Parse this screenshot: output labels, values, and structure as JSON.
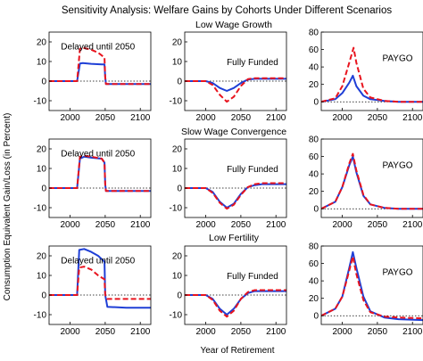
{
  "figure": {
    "title": "Sensitivity Analysis: Welfare Gains by Cohorts Under Different Scenarios",
    "ylabel": "Consumption Equivalent Gain/Loss (in Percent)",
    "xlabel": "Year of Retirement"
  },
  "rows": [
    {
      "title": "Low Wage Growth"
    },
    {
      "title": "Slow Wage Convergence"
    },
    {
      "title": "Low Fertility"
    }
  ],
  "colors": {
    "solid": "#1f3fd6",
    "dashed": "#e8141e",
    "axis": "#000000"
  },
  "chart_data": [
    {
      "type": "line",
      "row": 0,
      "col": 0,
      "annotation": "Delayed until 2050",
      "xlim": [
        1970,
        2115
      ],
      "ylim": [
        -15,
        25
      ],
      "xticks": [
        2000,
        2050,
        2100
      ],
      "yticks": [
        -10,
        0,
        10,
        20
      ],
      "zero_line": true,
      "series": [
        {
          "style": "solid",
          "x": [
            1970,
            2010,
            2014,
            2018,
            2030,
            2045,
            2049,
            2050,
            2051,
            2115
          ],
          "y": [
            0,
            0,
            9,
            9.2,
            8.8,
            8.5,
            8.5,
            2,
            -1.5,
            -1.5
          ]
        },
        {
          "style": "dashed",
          "x": [
            1970,
            2010,
            2014,
            2018,
            2030,
            2040,
            2049,
            2050,
            2051,
            2115
          ],
          "y": [
            0,
            0,
            16.5,
            17,
            16,
            14.5,
            12,
            2,
            -1.5,
            -1.5
          ]
        }
      ]
    },
    {
      "type": "line",
      "row": 0,
      "col": 1,
      "annotation": "Fully Funded",
      "xlim": [
        1970,
        2115
      ],
      "ylim": [
        -15,
        25
      ],
      "xticks": [
        2000,
        2050,
        2100
      ],
      "yticks": [
        -10,
        0,
        10,
        20
      ],
      "zero_line": true,
      "series": [
        {
          "style": "solid",
          "x": [
            1970,
            2000,
            2010,
            2020,
            2030,
            2040,
            2050,
            2060,
            2070,
            2080,
            2100,
            2115
          ],
          "y": [
            0,
            0,
            -1,
            -3.5,
            -5,
            -3.5,
            -1,
            0.8,
            1.2,
            1.2,
            1.2,
            1.2
          ]
        },
        {
          "style": "dashed",
          "x": [
            1970,
            2000,
            2010,
            2020,
            2030,
            2040,
            2050,
            2060,
            2070,
            2080,
            2100,
            2115
          ],
          "y": [
            0,
            0,
            -2,
            -7,
            -10.5,
            -8,
            -2.5,
            1,
            1.5,
            1.5,
            1.5,
            1.5
          ]
        }
      ]
    },
    {
      "type": "line",
      "row": 0,
      "col": 2,
      "annotation": "PAYGO",
      "xlim": [
        1970,
        2115
      ],
      "ylim": [
        -10,
        80
      ],
      "xticks": [
        2000,
        2050,
        2100
      ],
      "yticks": [
        0,
        20,
        40,
        60,
        80
      ],
      "zero_line": true,
      "series": [
        {
          "style": "solid",
          "x": [
            1970,
            1990,
            2000,
            2010,
            2015,
            2020,
            2030,
            2040,
            2060,
            2080,
            2115
          ],
          "y": [
            0,
            3,
            10,
            22,
            30,
            18,
            7,
            3,
            1,
            0,
            0
          ]
        },
        {
          "style": "dashed",
          "x": [
            1970,
            1990,
            2000,
            2010,
            2016,
            2020,
            2030,
            2040,
            2060,
            2080,
            2115
          ],
          "y": [
            0,
            4,
            18,
            45,
            62,
            45,
            15,
            5,
            1,
            0,
            0
          ]
        }
      ]
    },
    {
      "type": "line",
      "row": 1,
      "col": 0,
      "annotation": "Delayed until 2050",
      "xlim": [
        1970,
        2115
      ],
      "ylim": [
        -15,
        25
      ],
      "xticks": [
        2000,
        2050,
        2100
      ],
      "yticks": [
        -10,
        0,
        10,
        20
      ],
      "zero_line": true,
      "series": [
        {
          "style": "solid",
          "x": [
            1970,
            2010,
            2014,
            2020,
            2030,
            2045,
            2049,
            2050,
            2051,
            2115
          ],
          "y": [
            0,
            0,
            15,
            16,
            15.5,
            15,
            13,
            2,
            -1.5,
            -1.5
          ]
        },
        {
          "style": "dashed",
          "x": [
            1970,
            2010,
            2014,
            2020,
            2030,
            2045,
            2049,
            2050,
            2051,
            2115
          ],
          "y": [
            0,
            0,
            16,
            16.5,
            16,
            15,
            13,
            2,
            -1.5,
            -1.5
          ]
        }
      ]
    },
    {
      "type": "line",
      "row": 1,
      "col": 1,
      "annotation": "Fully Funded",
      "xlim": [
        1970,
        2115
      ],
      "ylim": [
        -15,
        25
      ],
      "xticks": [
        2000,
        2050,
        2100
      ],
      "yticks": [
        -10,
        0,
        10,
        20
      ],
      "zero_line": true,
      "series": [
        {
          "style": "solid",
          "x": [
            1970,
            2000,
            2010,
            2020,
            2030,
            2040,
            2050,
            2060,
            2070,
            2080,
            2100,
            2115
          ],
          "y": [
            0,
            0,
            -2,
            -7,
            -10,
            -8,
            -3,
            0.5,
            1.5,
            2,
            2,
            2
          ]
        },
        {
          "style": "dashed",
          "x": [
            1970,
            2000,
            2010,
            2020,
            2030,
            2040,
            2050,
            2060,
            2070,
            2080,
            2100,
            2115
          ],
          "y": [
            0,
            0,
            -2.5,
            -7.5,
            -10.5,
            -8.5,
            -3.5,
            0.5,
            2,
            2.5,
            2.5,
            2.5
          ]
        }
      ]
    },
    {
      "type": "line",
      "row": 1,
      "col": 2,
      "annotation": "PAYGO",
      "xlim": [
        1970,
        2115
      ],
      "ylim": [
        -10,
        80
      ],
      "xticks": [
        2000,
        2050,
        2100
      ],
      "yticks": [
        0,
        20,
        40,
        60,
        80
      ],
      "zero_line": true,
      "series": [
        {
          "style": "solid",
          "x": [
            1970,
            1990,
            2000,
            2010,
            2015,
            2020,
            2030,
            2040,
            2060,
            2080,
            2115
          ],
          "y": [
            0,
            8,
            25,
            50,
            60,
            42,
            15,
            5,
            1,
            0,
            0
          ]
        },
        {
          "style": "dashed",
          "x": [
            1970,
            1990,
            2000,
            2010,
            2015,
            2020,
            2030,
            2040,
            2060,
            2080,
            2115
          ],
          "y": [
            0,
            8,
            25,
            52,
            63,
            44,
            16,
            5,
            1,
            0,
            0
          ]
        }
      ]
    },
    {
      "type": "line",
      "row": 2,
      "col": 0,
      "annotation": "Delayed until 2050",
      "xlim": [
        1970,
        2115
      ],
      "ylim": [
        -15,
        25
      ],
      "xticks": [
        2000,
        2050,
        2100
      ],
      "yticks": [
        -10,
        0,
        10,
        20
      ],
      "zero_line": true,
      "series": [
        {
          "style": "solid",
          "x": [
            1970,
            2010,
            2013,
            2020,
            2030,
            2040,
            2049,
            2050,
            2053,
            2080,
            2115
          ],
          "y": [
            0,
            0,
            23,
            23.5,
            22,
            20,
            17,
            0,
            -6,
            -6.5,
            -6.5
          ]
        },
        {
          "style": "dashed",
          "x": [
            1970,
            2010,
            2013,
            2020,
            2030,
            2040,
            2049,
            2050,
            2053,
            2080,
            2115
          ],
          "y": [
            0,
            0,
            14,
            14.5,
            13,
            10,
            8,
            0,
            -2,
            -2,
            -2
          ]
        }
      ]
    },
    {
      "type": "line",
      "row": 2,
      "col": 1,
      "annotation": "Fully Funded",
      "xlim": [
        1970,
        2115
      ],
      "ylim": [
        -15,
        25
      ],
      "xticks": [
        2000,
        2050,
        2100
      ],
      "yticks": [
        -10,
        0,
        10,
        20
      ],
      "zero_line": true,
      "series": [
        {
          "style": "solid",
          "x": [
            1970,
            2000,
            2010,
            2020,
            2030,
            2040,
            2050,
            2060,
            2070,
            2080,
            2100,
            2115
          ],
          "y": [
            0,
            0,
            -2,
            -7,
            -10,
            -7,
            -2,
            1,
            2,
            2,
            2,
            2
          ]
        },
        {
          "style": "dashed",
          "x": [
            1970,
            2000,
            2010,
            2020,
            2030,
            2040,
            2050,
            2060,
            2070,
            2080,
            2100,
            2115
          ],
          "y": [
            0,
            0,
            -2.5,
            -8,
            -11,
            -8,
            -2,
            1.5,
            2.5,
            2.5,
            2.5,
            2.5
          ]
        }
      ]
    },
    {
      "type": "line",
      "row": 2,
      "col": 2,
      "annotation": "PAYGO",
      "xlim": [
        1970,
        2115
      ],
      "ylim": [
        -10,
        80
      ],
      "xticks": [
        2000,
        2050,
        2100
      ],
      "yticks": [
        0,
        20,
        40,
        60,
        80
      ],
      "zero_line": true,
      "series": [
        {
          "style": "solid",
          "x": [
            1970,
            1990,
            2000,
            2010,
            2015,
            2020,
            2030,
            2040,
            2060,
            2080,
            2115
          ],
          "y": [
            0,
            8,
            22,
            55,
            73,
            55,
            22,
            5,
            -2,
            -4,
            -5
          ]
        },
        {
          "style": "dashed",
          "x": [
            1970,
            1990,
            2000,
            2010,
            2015,
            2020,
            2030,
            2040,
            2060,
            2080,
            2115
          ],
          "y": [
            0,
            8,
            22,
            52,
            68,
            48,
            18,
            4,
            -1,
            -2,
            -3
          ]
        }
      ]
    }
  ]
}
